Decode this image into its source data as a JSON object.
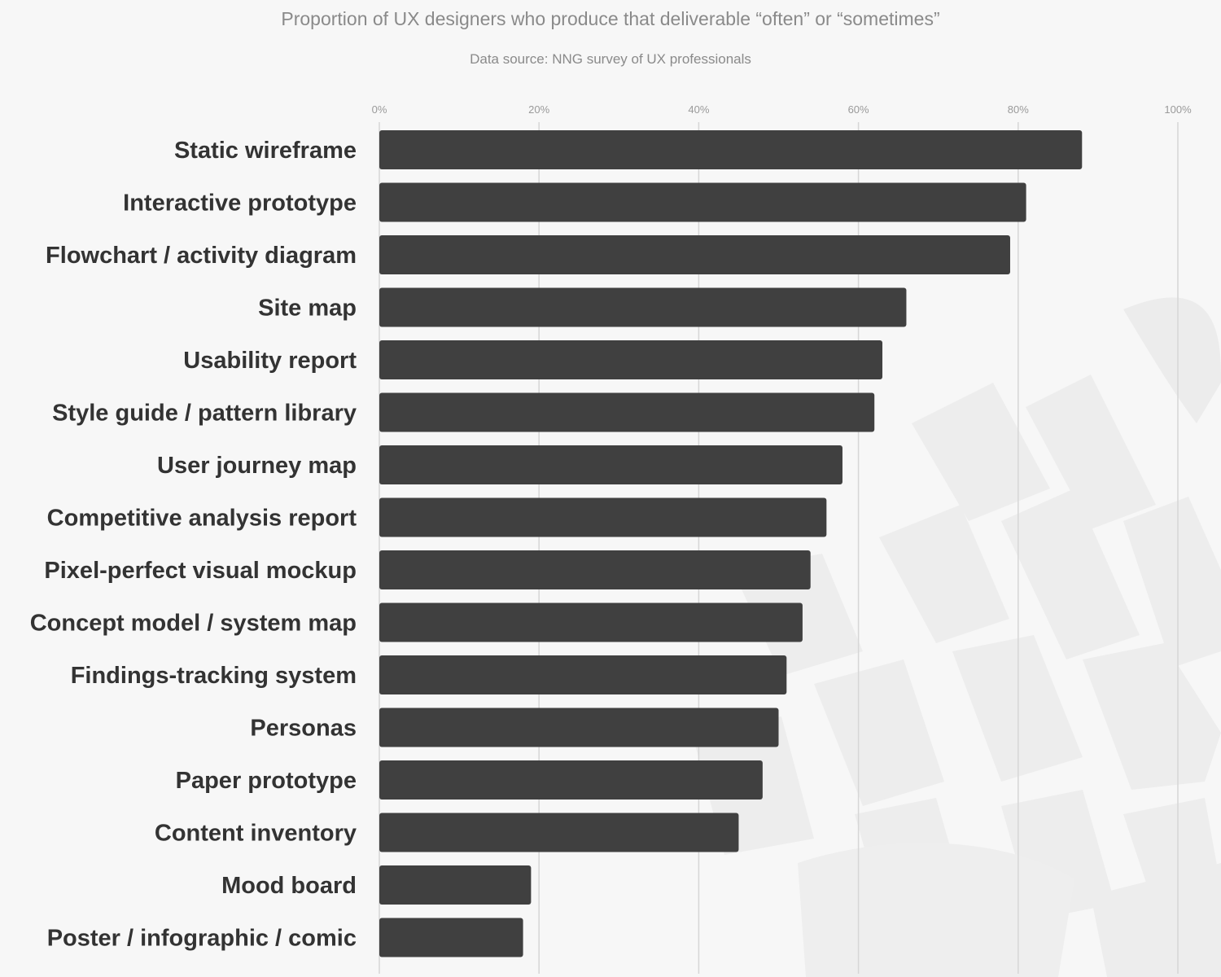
{
  "chart_data": {
    "type": "bar",
    "orientation": "horizontal",
    "title": "Proportion of UX designers who produce that deliverable “often” or “sometimes”",
    "subtitle": "Data source: NNG survey of UX professionals",
    "xlabel": "",
    "ylabel": "",
    "xlim": [
      0,
      100
    ],
    "ticks": [
      0,
      20,
      40,
      60,
      80,
      100
    ],
    "tick_labels": [
      "0%",
      "20%",
      "40%",
      "60%",
      "80%",
      "100%"
    ],
    "grid": true,
    "categories": [
      "Static wireframe",
      "Interactive prototype",
      "Flowchart / activity diagram",
      "Site map",
      "Usability report",
      "Style guide / pattern library",
      "User journey map",
      "Competitive analysis report",
      "Pixel-perfect visual mockup",
      "Concept model / system map",
      "Findings-tracking system",
      "Personas",
      "Paper prototype",
      "Content inventory",
      "Mood board",
      "Poster / infographic / comic"
    ],
    "values": [
      88,
      81,
      79,
      66,
      63,
      62,
      58,
      56,
      54,
      53,
      51,
      50,
      48,
      45,
      19,
      18
    ]
  },
  "colors": {
    "bar": "#404040",
    "background": "#f7f7f7",
    "watermark": "#e9e9e9"
  }
}
